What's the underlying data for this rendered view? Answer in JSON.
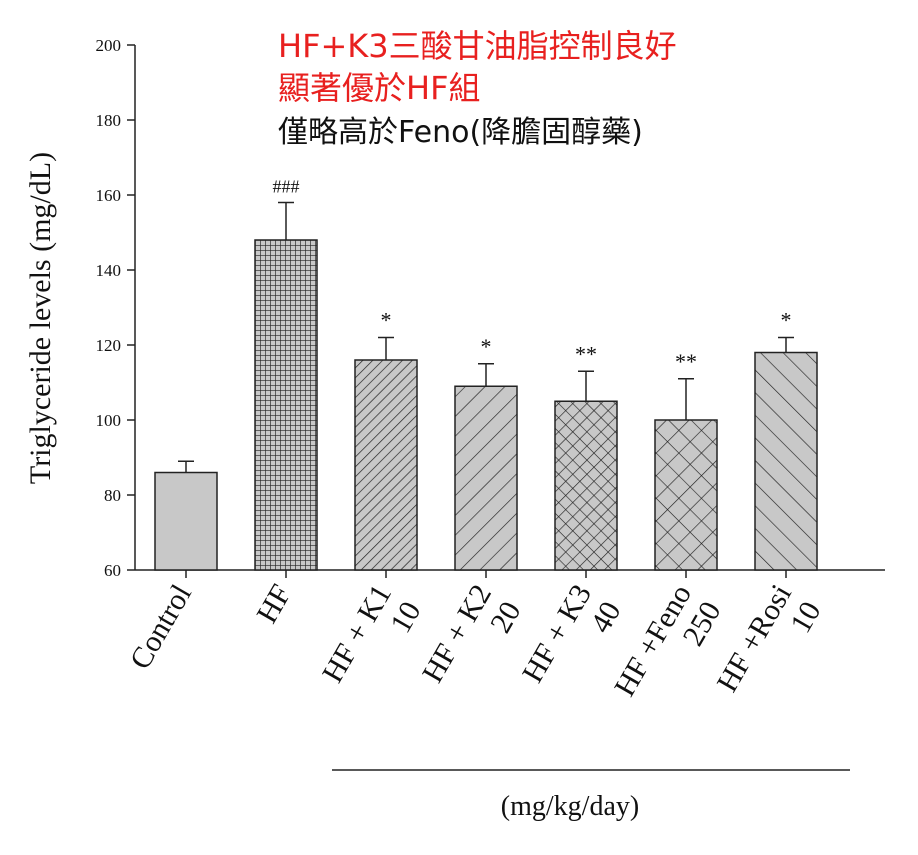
{
  "annotations": {
    "line1": "HF+K3三酸甘油脂控制良好",
    "line2": "顯著優於HF組",
    "line3": "僅略高於Feno(降膽固醇藥)"
  },
  "colors": {
    "annotation_red": "#e8201f",
    "bar_fill": "#c8c8c8",
    "pattern_line": "#222222"
  },
  "chart_data": {
    "type": "bar",
    "ylabel": "Triglyceride levels (mg/dL)",
    "xlabel": "(mg/kg/day)",
    "ylim": [
      60,
      200
    ],
    "yticks": [
      60,
      80,
      100,
      120,
      140,
      160,
      180,
      200
    ],
    "categories": [
      {
        "line1": "Control",
        "line2": "",
        "value": 86,
        "error": 3,
        "sig": "",
        "pattern": "solid"
      },
      {
        "line1": "HF",
        "line2": "",
        "value": 148,
        "error": 10,
        "sig": "###",
        "pattern": "grid"
      },
      {
        "line1": "HF + K1",
        "line2": "10",
        "value": 116,
        "error": 6,
        "sig": "*",
        "pattern": "fine-diagonal"
      },
      {
        "line1": "HF + K2",
        "line2": "20",
        "value": 109,
        "error": 6,
        "sig": "*",
        "pattern": "diagonal"
      },
      {
        "line1": "HF + K3",
        "line2": "40",
        "value": 105,
        "error": 8,
        "sig": "**",
        "pattern": "crosshatch-fine"
      },
      {
        "line1": "HF +Feno",
        "line2": "250",
        "value": 100,
        "error": 11,
        "sig": "**",
        "pattern": "crosshatch"
      },
      {
        "line1": "HF +Rosi",
        "line2": "10",
        "value": 118,
        "error": 4,
        "sig": "*",
        "pattern": "back-diagonal"
      }
    ]
  }
}
